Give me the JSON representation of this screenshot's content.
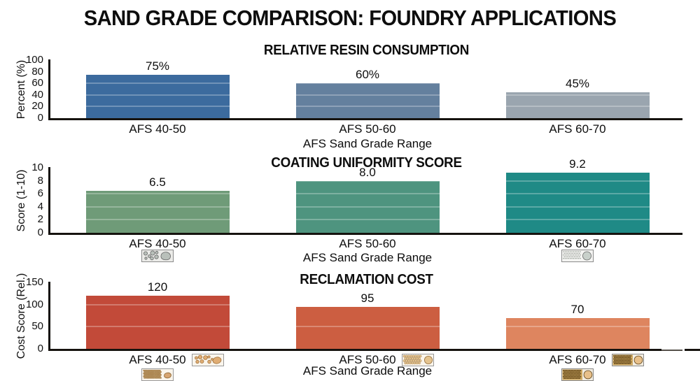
{
  "page_title": "SAND GRADE COMPARISON: FOUNDRY APPLICATIONS",
  "chart_data": [
    {
      "type": "bar",
      "title": "RELATIVE RESIN CONSUMPTION",
      "ylabel": "Percent (%)",
      "xlabel": "AFS Sand Grade Range",
      "ylim": [
        0,
        100
      ],
      "yticks": [
        0,
        20,
        40,
        60,
        80,
        100
      ],
      "grid": true,
      "categories": [
        "AFS 40-50",
        "AFS 50-60",
        "AFS 60-70"
      ],
      "values": [
        75,
        60,
        45
      ],
      "value_labels": [
        "75%",
        "60%",
        "45%"
      ],
      "bar_colors": [
        "#3c6b9e",
        "#64809e",
        "#9aa5af"
      ],
      "icons": []
    },
    {
      "type": "bar",
      "title": "COATING UNIFORMITY SCORE",
      "ylabel": "Score (1-10)",
      "xlabel": "AFS Sand Grade Range",
      "ylim": [
        0,
        10
      ],
      "yticks": [
        0,
        2,
        4,
        6,
        8,
        10
      ],
      "grid": true,
      "categories": [
        "AFS 40-50",
        "AFS 50-60",
        "AFS 60-70"
      ],
      "values": [
        6.5,
        8.0,
        9.2
      ],
      "value_labels": [
        "6.5",
        "8.0",
        "9.2"
      ],
      "bar_colors": [
        "#6f9b78",
        "#4e947f",
        "#1f8a86"
      ],
      "icons": [
        {
          "category": 0,
          "position": "below",
          "style": "coarse-gray",
          "name": "coarse-grain-sample-icon"
        },
        {
          "category": 2,
          "position": "below",
          "style": "fine-gray",
          "name": "fine-grain-sample-icon"
        }
      ]
    },
    {
      "type": "bar",
      "title": "RECLAMATION COST",
      "ylabel": "Cost Score (Rel.)",
      "xlabel": "AFS Sand Grade Range",
      "ylim": [
        0,
        150
      ],
      "yticks": [
        0,
        50,
        100,
        150
      ],
      "grid": true,
      "categories": [
        "AFS 40-50",
        "AFS 50-60",
        "AFS 60-70"
      ],
      "values": [
        120,
        95,
        70
      ],
      "value_labels": [
        "120",
        "95",
        "70"
      ],
      "bar_colors": [
        "#c24a39",
        "#cc5e41",
        "#de855f"
      ],
      "icons": [
        {
          "category": 0,
          "position": "right",
          "style": "coarse-tan",
          "name": "coarse-sand-pebbles-icon"
        },
        {
          "category": 0,
          "position": "below",
          "style": "specks-tan",
          "name": "coarse-sand-cluster-icon"
        },
        {
          "category": 1,
          "position": "right",
          "style": "medium-tan",
          "name": "medium-sand-grains-icon"
        },
        {
          "category": 2,
          "position": "right",
          "style": "fine-tan",
          "name": "fine-sand-grains-icon"
        },
        {
          "category": 2,
          "position": "below",
          "style": "fine-tan",
          "name": "fine-sand-grains-icon"
        }
      ]
    }
  ]
}
